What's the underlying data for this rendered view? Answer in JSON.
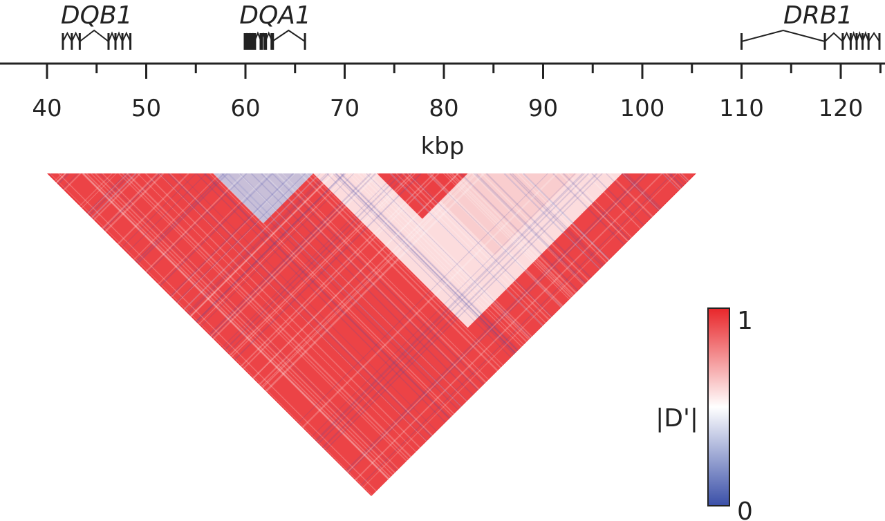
{
  "chart_data": {
    "type": "heatmap",
    "subtype": "linkage-disequilibrium-triangle",
    "xlabel": "kbp",
    "xlim": [
      34,
      124
    ],
    "major_ticks": [
      40,
      50,
      60,
      70,
      80,
      90,
      100,
      110,
      120
    ],
    "minor_ticks": [
      35,
      45,
      55,
      65,
      75,
      85,
      95,
      105,
      115
    ],
    "tick_labels": [
      "40",
      "50",
      "60",
      "70",
      "80",
      "90",
      "100",
      "110",
      "120"
    ],
    "genes": [
      {
        "name": "DQB1",
        "start_kbp": 41.6,
        "end_kbp": 48.4,
        "strand": "-",
        "exons_kbp": [
          41.6,
          42.5,
          43.3,
          46.2,
          46.9,
          47.6,
          48.4
        ]
      },
      {
        "name": "DQA1",
        "start_kbp": 60.0,
        "end_kbp": 66.0,
        "strand": "+",
        "exons_kbp": [
          60.0,
          60.3,
          60.6,
          60.9,
          61.6,
          62.0,
          62.7,
          66.0
        ]
      },
      {
        "name": "DRB1",
        "start_kbp": 110.0,
        "end_kbp": 124.0,
        "strand": "-",
        "exons_kbp": [
          110.0,
          118.4,
          120.2,
          121.0,
          121.6,
          122.2,
          122.8,
          123.9
        ]
      }
    ],
    "heatmap": {
      "value_name": "|D'|",
      "range": [
        0,
        1
      ],
      "region_kbp": [
        34,
        105
      ],
      "blocks": [
        {
          "from_kbp": 34,
          "to_kbp": 105,
          "value": 0.93
        },
        {
          "from_kbp": 52,
          "to_kbp": 63,
          "value": 0.35
        },
        {
          "from_kbp": 63,
          "to_kbp": 97,
          "value": 0.55
        },
        {
          "from_kbp": 74,
          "to_kbp": 92,
          "value": 0.62
        },
        {
          "from_kbp": 70,
          "to_kbp": 80,
          "value": 0.97
        }
      ]
    },
    "colorbar": {
      "label": "|D'|",
      "min_label": "0",
      "max_label": "1",
      "colors": [
        "#3a4fa8",
        "#ffffff",
        "#e8262a"
      ]
    },
    "grid": false
  }
}
